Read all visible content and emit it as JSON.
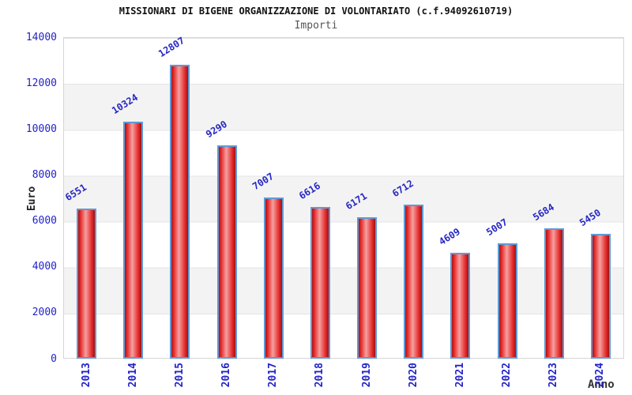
{
  "header": {
    "title": "MISSIONARI DI BIGENE ORGANIZZAZIONE DI VOLONTARIATO (c.f.94092610719)",
    "subtitle": "Importi"
  },
  "chart_data": {
    "type": "bar",
    "title": "MISSIONARI DI BIGENE ORGANIZZAZIONE DI VOLONTARIATO (c.f.94092610719)",
    "subtitle": "Importi",
    "xlabel": "Anno",
    "ylabel": "Euro",
    "categories": [
      "2013",
      "2014",
      "2015",
      "2016",
      "2017",
      "2018",
      "2019",
      "2020",
      "2021",
      "2022",
      "2023",
      "2024"
    ],
    "values": [
      6551,
      10324,
      12807,
      9290,
      7007,
      6616,
      6171,
      6712,
      4609,
      5007,
      5684,
      5450
    ],
    "ylim": [
      0,
      14000
    ],
    "y_ticks": [
      0,
      2000,
      4000,
      6000,
      8000,
      10000,
      12000,
      14000
    ],
    "grid": "horizontal-bands",
    "legend": "none",
    "colors": {
      "bar_fill": "#e62e2e",
      "bar_fill_highlight": "#f5a0a0",
      "bar_border": "#5e9ad6",
      "value_label": "#2626c4",
      "tick_label": "#2323c8",
      "band": "#f3f3f3",
      "gridline": "#e4e4e4",
      "title": "#111111",
      "subtitle": "#555555"
    }
  }
}
